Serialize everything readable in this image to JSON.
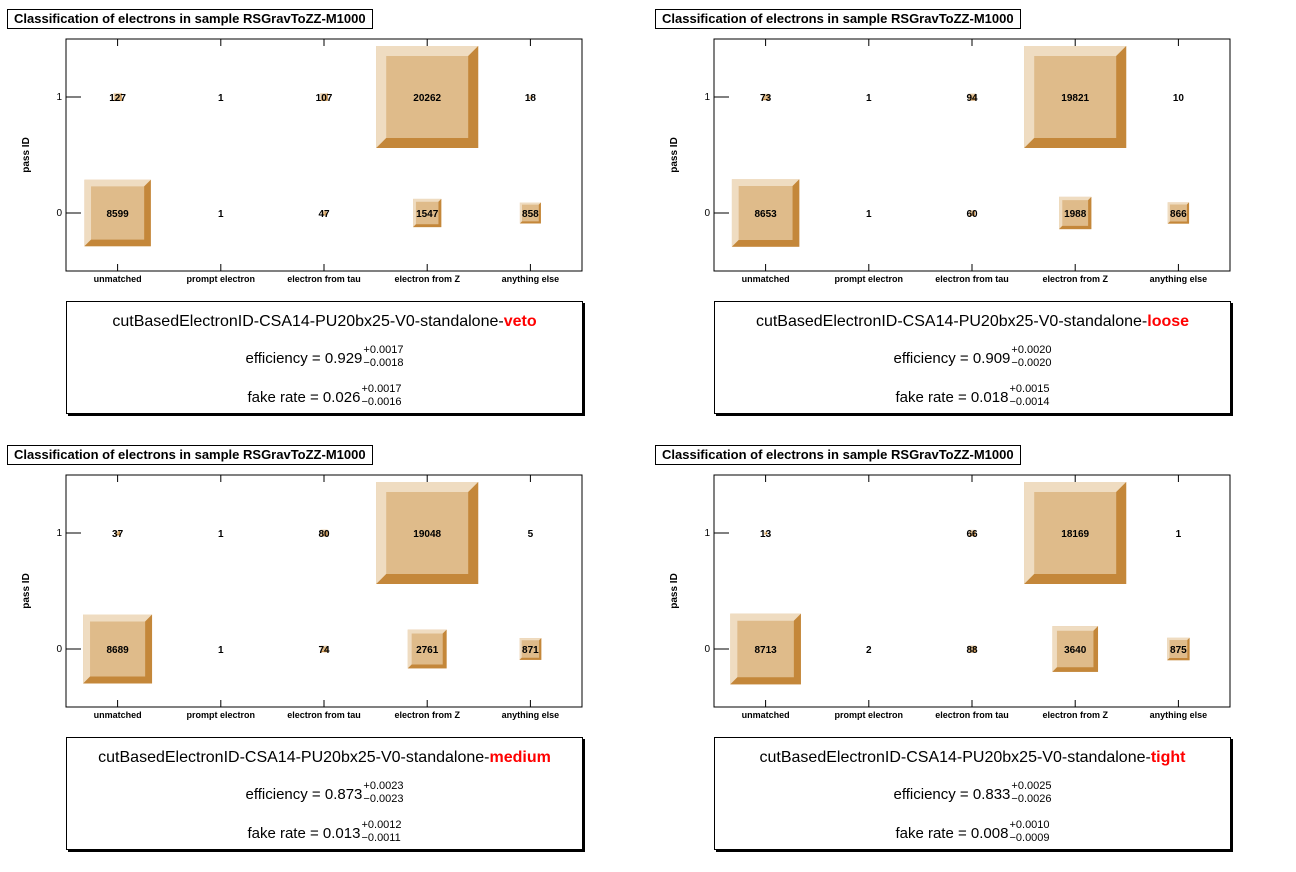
{
  "panels": [
    {
      "title": "Classification of electrons in sample RSGravToZZ-M1000",
      "id_prefix": "cutBasedElectronID-CSA14-PU20bx25-V0-standalone-",
      "working_point": "veto",
      "efficiency": {
        "label": "efficiency = ",
        "value": "0.929",
        "err_up": "+0.0017",
        "err_down": "−0.0018"
      },
      "fake_rate": {
        "label": "fake rate = ",
        "value": "0.026",
        "err_up": "+0.0017",
        "err_down": "−0.0016"
      }
    },
    {
      "title": "Classification of electrons in sample RSGravToZZ-M1000",
      "id_prefix": "cutBasedElectronID-CSA14-PU20bx25-V0-standalone-",
      "working_point": "loose",
      "efficiency": {
        "label": "efficiency = ",
        "value": "0.909",
        "err_up": "+0.0020",
        "err_down": "−0.0020"
      },
      "fake_rate": {
        "label": "fake rate = ",
        "value": "0.018",
        "err_up": "+0.0015",
        "err_down": "−0.0014"
      }
    },
    {
      "title": "Classification of electrons in sample RSGravToZZ-M1000",
      "id_prefix": "cutBasedElectronID-CSA14-PU20bx25-V0-standalone-",
      "working_point": "medium",
      "efficiency": {
        "label": "efficiency = ",
        "value": "0.873",
        "err_up": "+0.0023",
        "err_down": "−0.0023"
      },
      "fake_rate": {
        "label": "fake rate = ",
        "value": "0.013",
        "err_up": "+0.0012",
        "err_down": "−0.0011"
      }
    },
    {
      "title": "Classification of electrons in sample RSGravToZZ-M1000",
      "id_prefix": "cutBasedElectronID-CSA14-PU20bx25-V0-standalone-",
      "working_point": "tight",
      "efficiency": {
        "label": "efficiency = ",
        "value": "0.833",
        "err_up": "+0.0025",
        "err_down": "−0.0026"
      },
      "fake_rate": {
        "label": "fake rate = ",
        "value": "0.008",
        "err_up": "+0.0010",
        "err_down": "−0.0009"
      }
    }
  ],
  "chart_data": [
    {
      "type": "heatmap",
      "title": "Classification of electrons in sample RSGravToZZ-M1000",
      "xlabel": "",
      "ylabel": "pass ID",
      "x_categories": [
        "unmatched",
        "prompt electron",
        "electron from tau",
        "electron from Z",
        "anything else"
      ],
      "y_categories": [
        "0",
        "1"
      ],
      "values": [
        [
          8599,
          1,
          47,
          1547,
          858
        ],
        [
          127,
          1,
          107,
          20262,
          18
        ]
      ]
    },
    {
      "type": "heatmap",
      "title": "Classification of electrons in sample RSGravToZZ-M1000",
      "xlabel": "",
      "ylabel": "pass ID",
      "x_categories": [
        "unmatched",
        "prompt electron",
        "electron from tau",
        "electron from Z",
        "anything else"
      ],
      "y_categories": [
        "0",
        "1"
      ],
      "values": [
        [
          8653,
          1,
          60,
          1988,
          866
        ],
        [
          73,
          1,
          94,
          19821,
          10
        ]
      ]
    },
    {
      "type": "heatmap",
      "title": "Classification of electrons in sample RSGravToZZ-M1000",
      "xlabel": "",
      "ylabel": "pass ID",
      "x_categories": [
        "unmatched",
        "prompt electron",
        "electron from tau",
        "electron from Z",
        "anything else"
      ],
      "y_categories": [
        "0",
        "1"
      ],
      "values": [
        [
          8689,
          1,
          74,
          2761,
          871
        ],
        [
          37,
          1,
          80,
          19048,
          5
        ]
      ]
    },
    {
      "type": "heatmap",
      "title": "Classification of electrons in sample RSGravToZZ-M1000",
      "xlabel": "",
      "ylabel": "pass ID",
      "x_categories": [
        "unmatched",
        "prompt electron",
        "electron from tau",
        "electron from Z",
        "anything else"
      ],
      "y_categories": [
        "0",
        "1"
      ],
      "values": [
        [
          8713,
          2,
          88,
          3640,
          875
        ],
        [
          13,
          null,
          66,
          18169,
          1
        ]
      ]
    }
  ],
  "colors": {
    "box_face": "#dfbb8a",
    "box_light": "#efdcc1",
    "box_dark": "#c4873a",
    "highlight": "#ff0000"
  }
}
